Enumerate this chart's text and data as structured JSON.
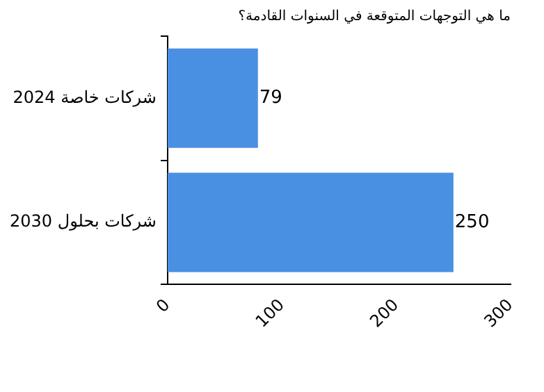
{
  "chart_data": {
    "type": "bar",
    "orientation": "horizontal",
    "title": "ما هي التوجهات المتوقعة في السنوات القادمة؟",
    "categories": [
      "شركات خاصة 2024",
      "شركات بحلول 2030"
    ],
    "values": [
      79,
      250
    ],
    "color": "#4a90e2",
    "xlim": [
      0,
      300
    ],
    "xticks": [
      0,
      100,
      200,
      300
    ],
    "grid": false,
    "legend": false,
    "data_labels": true
  }
}
